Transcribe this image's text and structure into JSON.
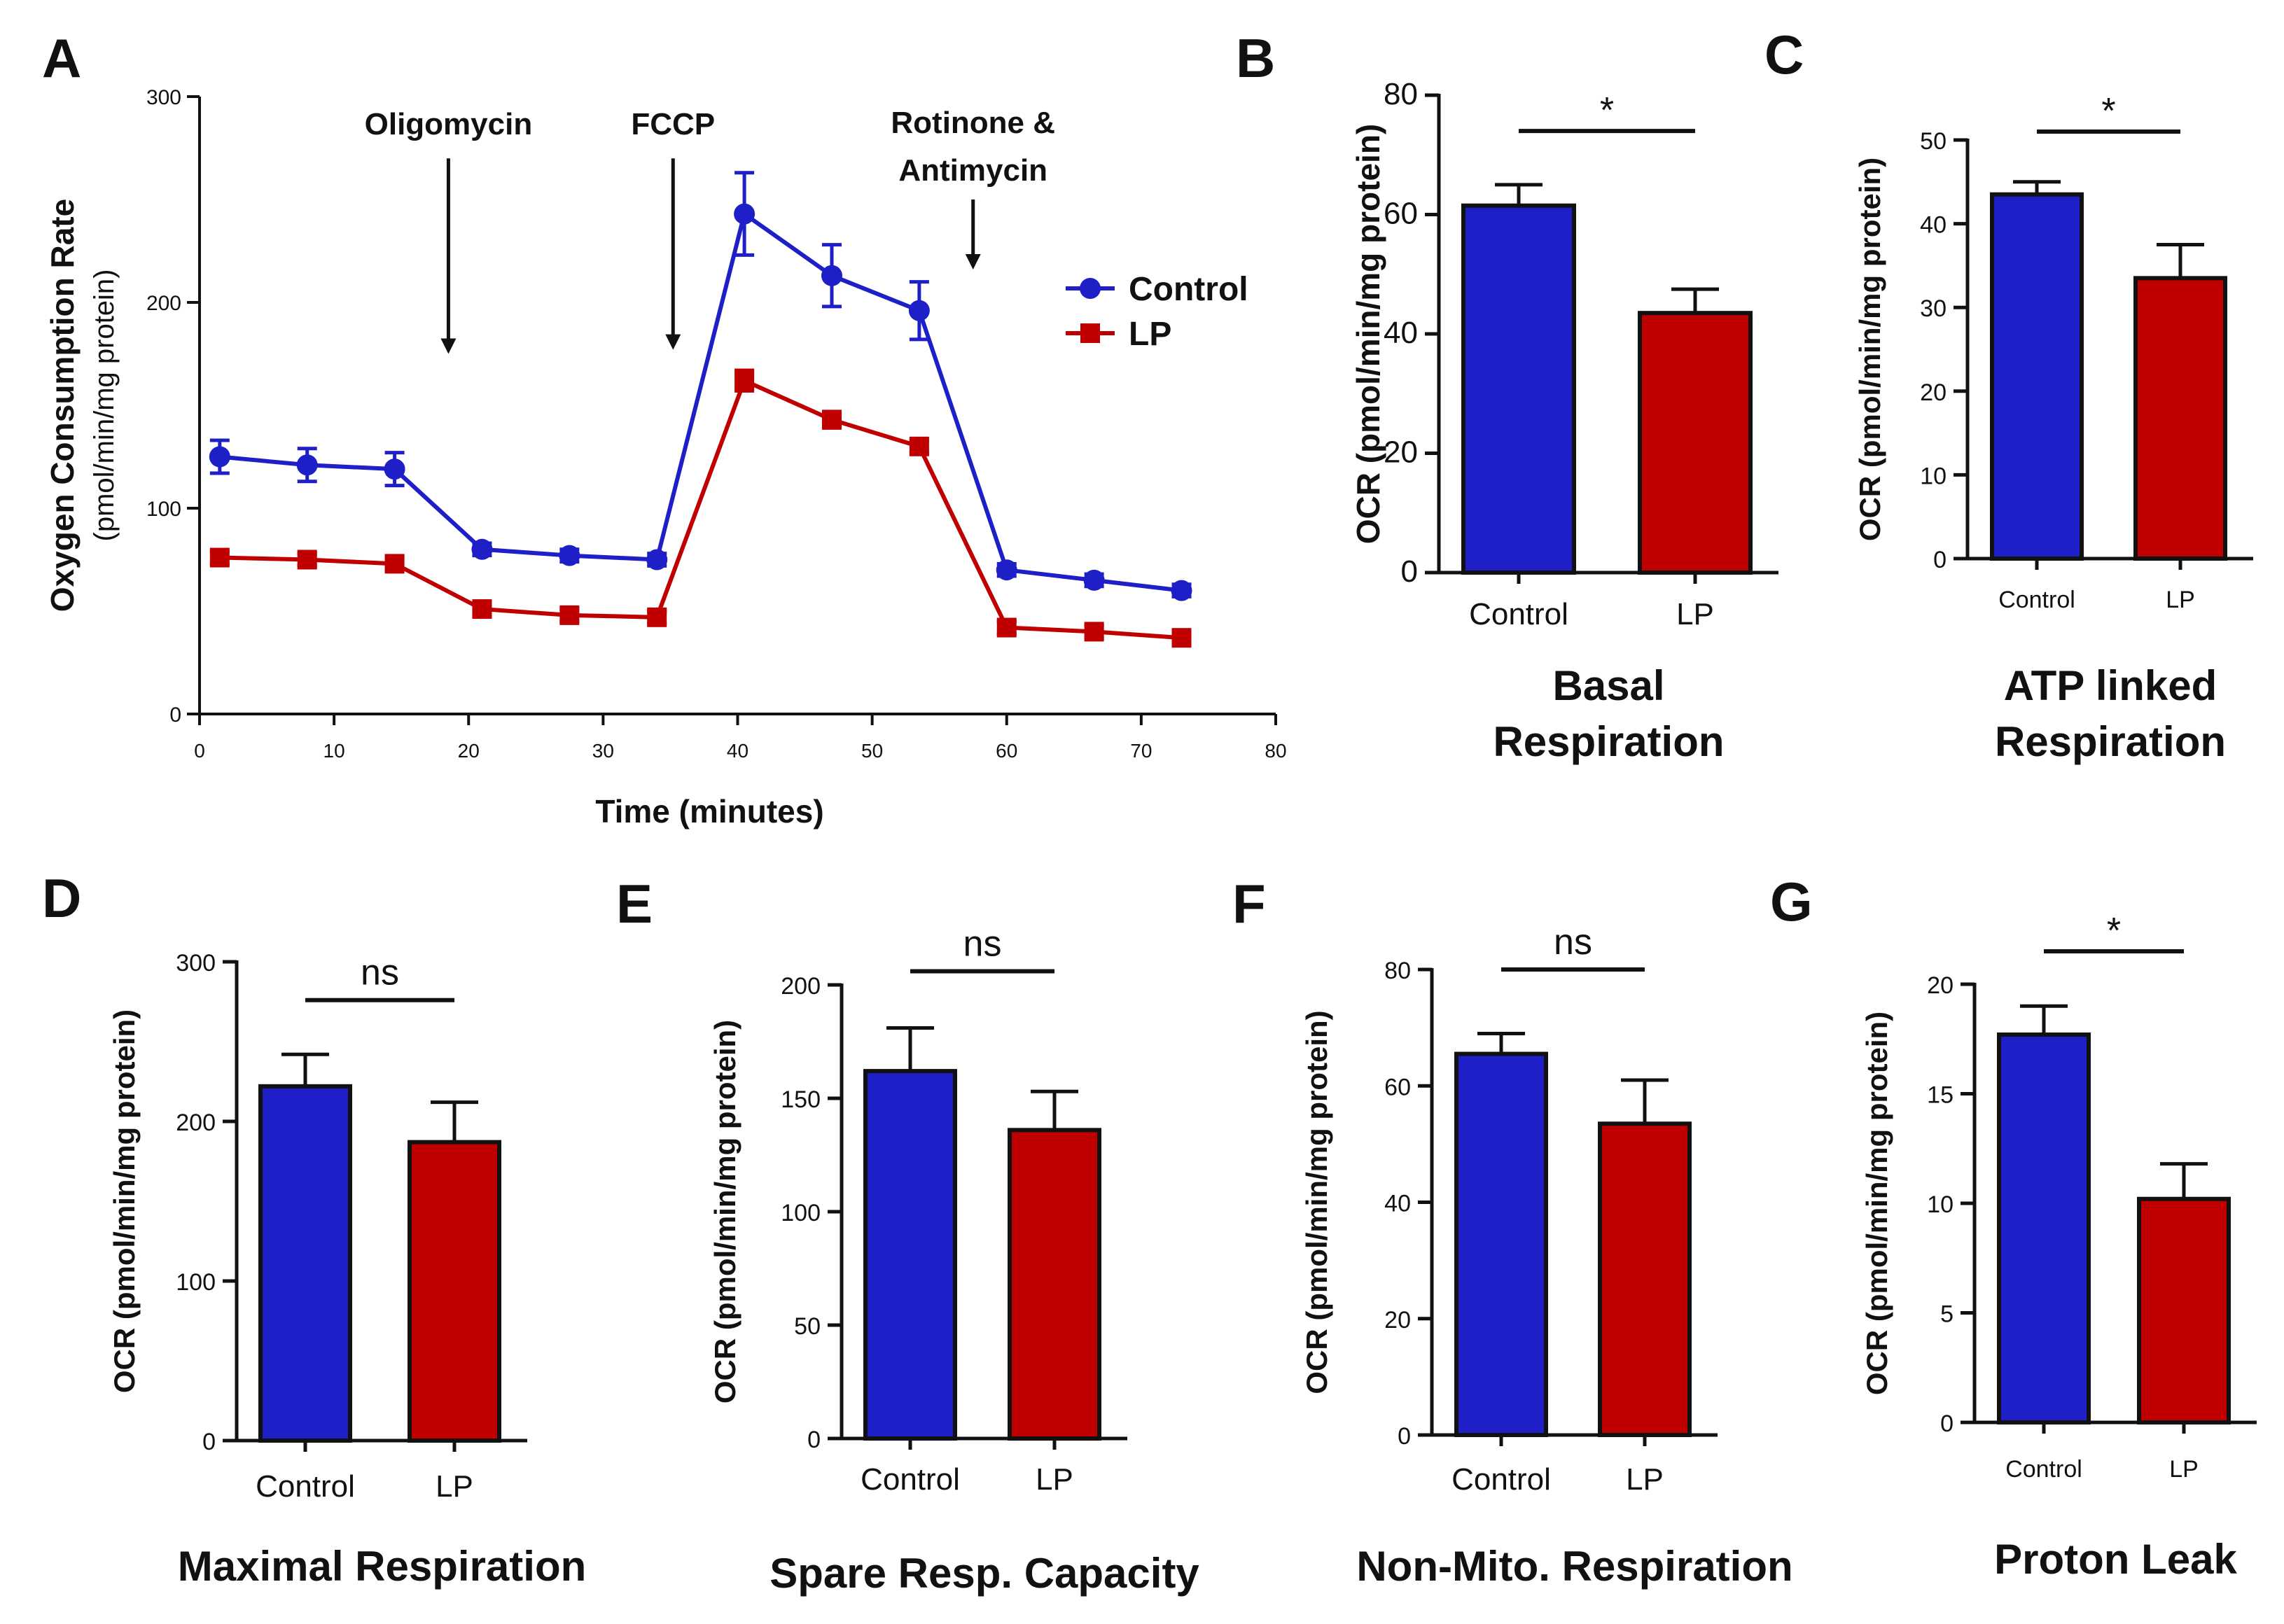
{
  "colors": {
    "control": "#1f1fc8",
    "lp": "#c00000",
    "axis": "#111111"
  },
  "chart_data": [
    {
      "id": "A",
      "letter": "A",
      "type": "line",
      "ylabel": "Oxygen Consumption Rate",
      "ylabel2": "(pmol/min/mg protein)",
      "xlabel": "Time (minutes)",
      "xlim": [
        0,
        80
      ],
      "ylim": [
        0,
        300
      ],
      "xticks": [
        0,
        10,
        20,
        30,
        40,
        50,
        60,
        70,
        80
      ],
      "yticks": [
        0,
        100,
        200,
        300
      ],
      "annotations": [
        {
          "text": "Oligomycin",
          "x": 18.5,
          "y_from": 270,
          "y_to": 175
        },
        {
          "text": "FCCP",
          "x": 35.2,
          "y_from": 270,
          "y_to": 177
        },
        {
          "text": "Rotinone &",
          "text2": "Antimycin",
          "x": 57.5,
          "y_from": 250,
          "y_to": 216
        }
      ],
      "legend": [
        {
          "name": "Control",
          "marker": "circle"
        },
        {
          "name": "LP",
          "marker": "square"
        }
      ],
      "series": [
        {
          "name": "Control",
          "x": [
            1.5,
            8,
            14.5,
            21,
            27.5,
            34,
            40.5,
            47,
            53.5,
            60,
            66.5,
            73
          ],
          "values": [
            125,
            121,
            119,
            80,
            77,
            75,
            243,
            213,
            196,
            70,
            65,
            60
          ],
          "errors": [
            8,
            8,
            8,
            3,
            3,
            3,
            20,
            15,
            14,
            3,
            3,
            3
          ]
        },
        {
          "name": "LP",
          "x": [
            1.5,
            8,
            14.5,
            21,
            27.5,
            34,
            40.5,
            47,
            53.5,
            60,
            66.5,
            73
          ],
          "values": [
            76,
            75,
            73,
            51,
            48,
            47,
            162,
            143,
            130,
            42,
            40,
            37
          ],
          "errors": [
            3,
            3,
            3,
            3,
            3,
            3,
            5,
            4,
            3,
            3,
            3,
            3
          ]
        }
      ]
    },
    {
      "id": "B",
      "letter": "B",
      "type": "bar",
      "title": "Basal",
      "title2": "Respiration",
      "ylabel": "OCR (pmol/min/mg protein)",
      "categories": [
        "Control",
        "LP"
      ],
      "values": [
        61.5,
        43.5
      ],
      "errors": [
        3.5,
        4.0
      ],
      "ylim": [
        0,
        80
      ],
      "yticks": [
        0,
        20,
        40,
        60,
        80
      ],
      "sig": "*",
      "sig_y": 74
    },
    {
      "id": "C",
      "letter": "C",
      "type": "bar",
      "title": "ATP linked",
      "title2": "Respiration",
      "ylabel": "OCR (pmol/min/mg protein)",
      "categories": [
        "Control",
        "LP"
      ],
      "values": [
        43.5,
        33.5
      ],
      "errors": [
        1.5,
        4.0
      ],
      "ylim": [
        0,
        50
      ],
      "yticks": [
        0,
        10,
        20,
        30,
        40,
        50
      ],
      "sig": "*",
      "sig_y": 51
    },
    {
      "id": "D",
      "letter": "D",
      "type": "bar",
      "title": "Maximal Respiration",
      "ylabel": "OCR (pmol/min/mg protein)",
      "categories": [
        "Control",
        "LP"
      ],
      "values": [
        222,
        187
      ],
      "errors": [
        20,
        25
      ],
      "ylim": [
        0,
        300
      ],
      "yticks": [
        0,
        100,
        200,
        300
      ],
      "sig": "ns",
      "sig_y": 276
    },
    {
      "id": "E",
      "letter": "E",
      "type": "bar",
      "title": "Spare Resp. Capacity",
      "ylabel": "OCR (pmol/min/mg protein)",
      "categories": [
        "Control",
        "LP"
      ],
      "values": [
        162,
        136
      ],
      "errors": [
        19,
        17
      ],
      "ylim": [
        0,
        200
      ],
      "yticks": [
        0,
        50,
        100,
        150,
        200
      ],
      "sig": "ns",
      "sig_y": 206
    },
    {
      "id": "F",
      "letter": "F",
      "type": "bar",
      "title": "Non-Mito. Respiration",
      "ylabel": "OCR (pmol/min/mg protein)",
      "categories": [
        "Control",
        "LP"
      ],
      "values": [
        65.5,
        53.5
      ],
      "errors": [
        3.5,
        7.5
      ],
      "ylim": [
        0,
        80
      ],
      "yticks": [
        0,
        20,
        40,
        60,
        80
      ],
      "sig": "ns",
      "sig_y": 80
    },
    {
      "id": "G",
      "letter": "G",
      "type": "bar",
      "title": "Proton Leak",
      "ylabel": "OCR (pmol/min/mg protein)",
      "categories": [
        "Control",
        "LP"
      ],
      "values": [
        17.7,
        10.2
      ],
      "errors": [
        1.3,
        1.6
      ],
      "ylim": [
        0,
        20
      ],
      "yticks": [
        0,
        5,
        10,
        15,
        20
      ],
      "sig": "*",
      "sig_y": 21.5
    }
  ]
}
